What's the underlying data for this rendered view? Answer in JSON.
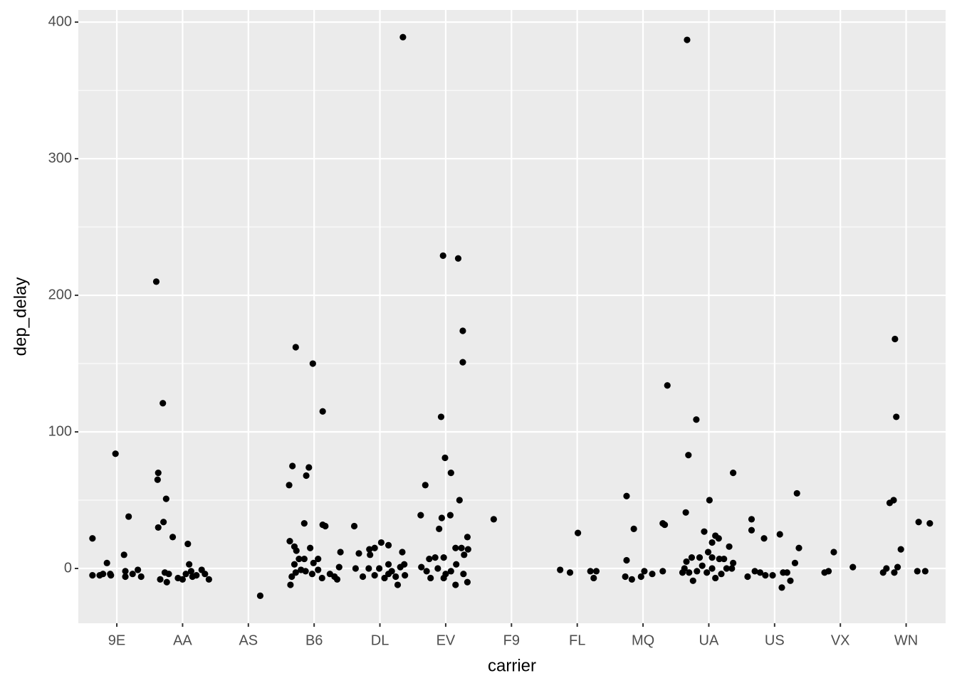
{
  "chart_data": {
    "type": "scatter",
    "x_label": "carrier",
    "y_label": "dep_delay",
    "color": "#000000",
    "grid": true,
    "xlim": [
      0.415,
      13.6
    ],
    "ylim": [
      -40.1,
      408.9
    ],
    "xticks": [
      {
        "value": 1,
        "label": "9E"
      },
      {
        "value": 2,
        "label": "AA"
      },
      {
        "value": 3,
        "label": "AS"
      },
      {
        "value": 4,
        "label": "B6"
      },
      {
        "value": 5,
        "label": "DL"
      },
      {
        "value": 6,
        "label": "EV"
      },
      {
        "value": 7,
        "label": "F9"
      },
      {
        "value": 8,
        "label": "FL"
      },
      {
        "value": 9,
        "label": "MQ"
      },
      {
        "value": 10,
        "label": "UA"
      },
      {
        "value": 11,
        "label": "US"
      },
      {
        "value": 12,
        "label": "VX"
      },
      {
        "value": 13,
        "label": "WN"
      }
    ],
    "yticks": [
      0,
      100,
      200,
      300,
      400
    ],
    "x": [
      0.63,
      0.63,
      0.74,
      0.85,
      0.9,
      0.91,
      0.98,
      1.11,
      1.13,
      1.13,
      1.18,
      1.24,
      1.32,
      1.37,
      0.79,
      1.6,
      1.7,
      1.63,
      1.62,
      1.71,
      1.75,
      1.63,
      1.85,
      2.08,
      1.66,
      1.76,
      1.73,
      1.79,
      1.93,
      2,
      2.05,
      2.1,
      2.13,
      2.21,
      2.29,
      2.34,
      2.4,
      2.15,
      3.18,
      3.62,
      3.67,
      3.72,
      3.92,
      3.88,
      3.98,
      4.13,
      3.85,
      4.13,
      4.17,
      3.63,
      3.7,
      3.73,
      3.77,
      3.85,
      3.7,
      3.94,
      4.06,
      4.4,
      3.66,
      3.72,
      3.8,
      3.87,
      3.97,
      4.06,
      4.12,
      4.24,
      4.31,
      4.35,
      4.38,
      3.64,
      3.99,
      4.61,
      4.68,
      4.63,
      4.84,
      4.92,
      5.02,
      5.13,
      4.85,
      4.74,
      4.83,
      4.92,
      4.99,
      5.07,
      5.13,
      5.18,
      5.24,
      5.27,
      5.31,
      5.34,
      5.37,
      5.35,
      5.38,
      5.13,
      5.62,
      5.69,
      5.63,
      5.71,
      5.75,
      5.84,
      5.77,
      5.9,
      5.94,
      5.96,
      5.93,
      5.99,
      6.08,
      6.07,
      6.19,
      6.21,
      6.26,
      6.26,
      6.33,
      6.15,
      6.24,
      6.34,
      6.28,
      5.88,
      5.97,
      6,
      6.08,
      6.16,
      6.15,
      6.27,
      6.33,
      5.97,
      6.73,
      7.74,
      7.89,
      8.01,
      8.2,
      8.25,
      8.29,
      8.75,
      8.75,
      8.73,
      8.83,
      8.86,
      8.97,
      9.02,
      9.14,
      9.3,
      9.33,
      9.3,
      9.37,
      9.67,
      9.69,
      9.81,
      9.65,
      10.01,
      10.37,
      9.93,
      10.1,
      10.15,
      10.05,
      10.31,
      9.66,
      9.74,
      9.86,
      9.99,
      10.05,
      10.16,
      10.23,
      10.37,
      9.63,
      9.7,
      9.76,
      9.82,
      9.9,
      9.97,
      10.05,
      10.1,
      10.19,
      10.27,
      10.35,
      9.6,
      10.65,
      10.65,
      10.84,
      11.08,
      11.34,
      11.37,
      11.31,
      10.59,
      10.7,
      10.78,
      10.86,
      10.97,
      11.11,
      11.13,
      11.19,
      11.24,
      11.76,
      11.82,
      11.9,
      12.19,
      12.83,
      12.85,
      12.75,
      12.81,
      12.92,
      12.65,
      12.7,
      12.82,
      12.87,
      13.19,
      13.36,
      13.17,
      13.29
    ],
    "values": [
      22,
      -5,
      -5,
      4,
      -4,
      -5,
      84,
      10,
      -2,
      -6,
      38,
      -4,
      -1,
      -6,
      -4,
      210,
      121,
      70,
      65,
      34,
      51,
      30,
      23,
      18,
      -8,
      -10,
      -3,
      -4,
      -7,
      -8,
      -4,
      3,
      -2,
      -5,
      -1,
      -4,
      -8,
      -6,
      -20,
      61,
      75,
      162,
      74,
      68,
      150,
      115,
      33,
      32,
      31,
      20,
      16,
      13,
      7,
      7,
      3,
      15,
      7,
      12,
      -6,
      -3,
      -1,
      -2,
      -4,
      -1,
      -7,
      -4,
      -6,
      -8,
      1,
      -12,
      4,
      31,
      11,
      0,
      14,
      15,
      19,
      17,
      10,
      -6,
      0,
      -5,
      0,
      -7,
      3,
      -2,
      -6,
      -12,
      1,
      12,
      3,
      389,
      -5,
      -4,
      39,
      61,
      1,
      -2,
      7,
      8,
      -7,
      29,
      37,
      229,
      111,
      81,
      70,
      39,
      227,
      50,
      174,
      151,
      23,
      15,
      15,
      14,
      10,
      0,
      -7,
      -4,
      -2,
      3,
      -12,
      -4,
      -10,
      8,
      36,
      -1,
      -3,
      26,
      -2,
      -7,
      -2,
      53,
      6,
      -6,
      -8,
      29,
      -6,
      -2,
      -4,
      33,
      32,
      -2,
      134,
      387,
      83,
      109,
      41,
      50,
      70,
      27,
      24,
      22,
      19,
      16,
      5,
      8,
      8,
      12,
      8,
      7,
      7,
      4,
      0,
      -3,
      -9,
      -2,
      2,
      -3,
      0,
      -7,
      -4,
      0,
      0,
      -3,
      36,
      28,
      22,
      25,
      55,
      15,
      4,
      -6,
      -2,
      -3,
      -5,
      -5,
      -14,
      -3,
      -3,
      -9,
      -3,
      -2,
      12,
      1,
      168,
      111,
      48,
      50,
      14,
      -3,
      0,
      -3,
      1,
      34,
      33,
      -2,
      -2
    ]
  }
}
